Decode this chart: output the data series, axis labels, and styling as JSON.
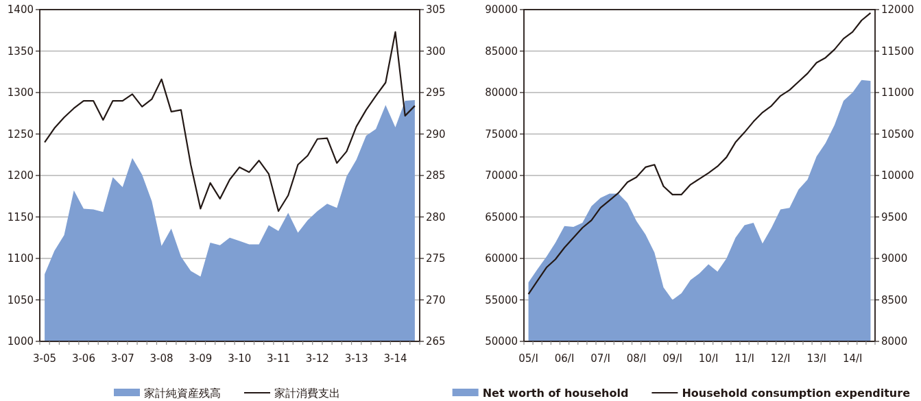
{
  "chart_data": [
    {
      "type": "area",
      "categories": [
        "3-05",
        null,
        null,
        null,
        "3-06",
        null,
        null,
        null,
        "3-07",
        null,
        null,
        null,
        "3-08",
        null,
        null,
        null,
        "3-09",
        null,
        null,
        null,
        "3-10",
        null,
        null,
        null,
        "3-11",
        null,
        null,
        null,
        "3-12",
        null,
        null,
        null,
        "3-13",
        null,
        null,
        null,
        "3-14",
        null,
        null
      ],
      "ylim": [
        1000,
        1400
      ],
      "yticks": [
        1000,
        1050,
        1100,
        1150,
        1200,
        1250,
        1300,
        1350,
        1400
      ],
      "y2lim": [
        265,
        305
      ],
      "y2ticks": [
        265,
        270,
        275,
        280,
        285,
        290,
        295,
        300,
        305
      ],
      "grid": "y",
      "legend": "bottom",
      "series": [
        {
          "name": "家計純資産残高",
          "color": "#7f9fd2",
          "values": [
            1081,
            1109,
            1128,
            1182,
            1160,
            1159,
            1156,
            1198,
            1186,
            1221,
            1201,
            1169,
            1115,
            1136,
            1102,
            1085,
            1078,
            1119,
            1116,
            1125,
            1121,
            1117,
            1117,
            1140,
            1133,
            1155,
            1131,
            1146,
            1157,
            1166,
            1161,
            1199,
            1219,
            1248,
            1256,
            1285,
            1258,
            1290,
            1291
          ]
        },
        {
          "name": "家計消費支出",
          "type": "line",
          "axis": "y2",
          "color": "#231815",
          "values": [
            289.0,
            290.7,
            292.0,
            293.1,
            294.0,
            294.0,
            291.7,
            294.0,
            294.0,
            294.8,
            293.3,
            294.2,
            296.6,
            292.7,
            292.9,
            286.3,
            281.0,
            284.1,
            282.2,
            284.5,
            286.0,
            285.4,
            286.8,
            285.2,
            280.7,
            282.6,
            286.3,
            287.4,
            289.4,
            289.5,
            286.5,
            287.9,
            290.9,
            292.9,
            294.6,
            296.2,
            302.3,
            292.2,
            293.4
          ]
        }
      ]
    },
    {
      "type": "area",
      "categories": [
        "05/I",
        null,
        null,
        null,
        "06/I",
        null,
        null,
        null,
        "07/I",
        null,
        null,
        null,
        "08/I",
        null,
        null,
        null,
        "09/I",
        null,
        null,
        null,
        "10/I",
        null,
        null,
        null,
        "11/I",
        null,
        null,
        null,
        "12/I",
        null,
        null,
        null,
        "13/I",
        null,
        null,
        null,
        "14/I",
        null,
        null
      ],
      "ylim": [
        50000,
        90000
      ],
      "yticks": [
        50000,
        55000,
        60000,
        65000,
        70000,
        75000,
        80000,
        85000,
        90000
      ],
      "y2lim": [
        8000,
        12000
      ],
      "y2ticks": [
        8000,
        8500,
        9000,
        9500,
        10000,
        10500,
        11000,
        11500,
        12000
      ],
      "grid": "y",
      "legend": "bottom",
      "series": [
        {
          "name": "Net worth of household",
          "color": "#7f9fd2",
          "values": [
            57100,
            58700,
            60200,
            61900,
            63900,
            63800,
            64300,
            66300,
            67300,
            67800,
            67800,
            66700,
            64500,
            62900,
            60700,
            56500,
            55000,
            55800,
            57400,
            58200,
            59300,
            58400,
            60000,
            62500,
            64000,
            64300,
            61800,
            63700,
            65900,
            66100,
            68300,
            69500,
            72300,
            73900,
            76100,
            79000,
            80000,
            81500,
            81400
          ]
        },
        {
          "name": "Household consumption expenditure",
          "type": "line",
          "axis": "y2",
          "color": "#231815",
          "values": [
            8570,
            8730,
            8890,
            8990,
            9130,
            9250,
            9370,
            9460,
            9610,
            9700,
            9790,
            9920,
            9980,
            10100,
            10130,
            9870,
            9770,
            9770,
            9890,
            9960,
            10030,
            10110,
            10220,
            10400,
            10520,
            10650,
            10760,
            10840,
            10960,
            11030,
            11130,
            11230,
            11360,
            11420,
            11520,
            11650,
            11730,
            11870,
            11960
          ]
        }
      ]
    }
  ]
}
